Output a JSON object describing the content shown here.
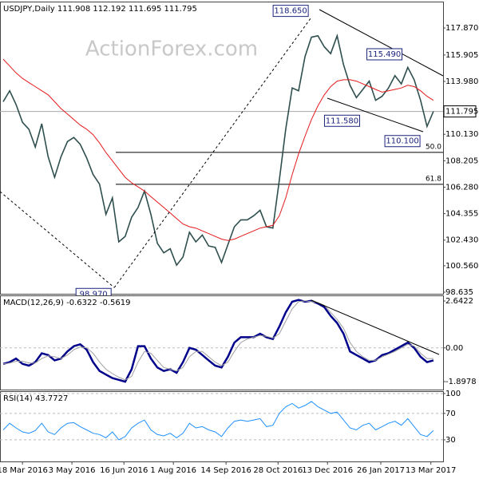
{
  "chart_data": [
    {
      "type": "line",
      "title": "USDJPY,Daily  111.908 112.192 111.695 111.795",
      "watermark": "ActionForex.com",
      "xlim": [
        -0.5,
        68.5
      ],
      "xticks": [
        {
          "value": 3,
          "label": "18 Mar 2016"
        },
        {
          "value": 10.7,
          "label": "3 May 2016"
        },
        {
          "value": 18.8,
          "label": "16 Jun 2016"
        },
        {
          "value": 26.5,
          "label": "1 Aug 2016"
        },
        {
          "value": 34.7,
          "label": "14 Sep 2016"
        },
        {
          "value": 42.8,
          "label": "28 Oct 2016"
        },
        {
          "value": 50.5,
          "label": "13 Dec 2016"
        },
        {
          "value": 58.8,
          "label": "26 Jan 2017"
        },
        {
          "value": 66.6,
          "label": "13 Mar 2017"
        }
      ],
      "ylim": [
        98.52,
        119.79
      ],
      "yticks": [
        98.635,
        {
          "value": 100.56,
          "label": "100.560"
        },
        {
          "value": 102.43,
          "label": "102.430"
        },
        104.355,
        {
          "value": 106.28,
          "label": "106.280"
        },
        108.205,
        {
          "value": 110.13,
          "label": "110.130"
        },
        {
          "value": 113.98,
          "label": "113.980"
        },
        115.905,
        {
          "value": 117.87,
          "label": "117.870"
        }
      ],
      "last_price": 111.795,
      "series": [
        {
          "color": "#2f4f4f",
          "values": [
            112.5,
            113.3,
            112.3,
            111.0,
            110.5,
            109.2,
            110.9,
            108.5,
            107.0,
            108.5,
            109.6,
            109.9,
            109.4,
            108.4,
            107.2,
            106.5,
            104.3,
            105.5,
            102.3,
            102.7,
            104.1,
            104.8,
            106.0,
            104.3,
            102.2,
            101.5,
            101.8,
            100.6,
            101.2,
            103.0,
            102.3,
            102.8,
            102.0,
            101.9,
            100.8,
            102.1,
            103.4,
            103.9,
            103.9,
            104.2,
            104.6,
            103.4,
            103.3,
            106.8,
            110.5,
            113.5,
            113.3,
            115.8,
            117.2,
            117.3,
            116.5,
            116.0,
            117.3,
            115.2,
            113.7,
            112.8,
            113.4,
            114.0,
            112.6,
            112.9,
            113.5,
            114.4,
            113.8,
            115.0,
            114.1,
            112.6,
            110.7,
            111.8
          ]
        },
        {
          "color": "#e41a1c",
          "values": [
            115.6,
            115.1,
            114.6,
            114.2,
            113.9,
            113.6,
            113.3,
            113.0,
            112.5,
            112.0,
            111.6,
            111.2,
            110.8,
            110.5,
            110.1,
            109.5,
            108.8,
            108.2,
            107.6,
            107.0,
            106.6,
            106.3,
            106.0,
            105.6,
            105.2,
            104.8,
            104.4,
            104.0,
            103.6,
            103.4,
            103.3,
            103.1,
            102.9,
            102.7,
            102.5,
            102.4,
            102.5,
            102.7,
            102.9,
            103.1,
            103.3,
            103.4,
            103.5,
            104.2,
            105.5,
            107.2,
            108.7,
            110.0,
            111.2,
            112.2,
            113.0,
            113.6,
            114.0,
            114.1,
            114.1,
            114.0,
            113.8,
            113.6,
            113.4,
            113.2,
            113.3,
            113.4,
            113.5,
            113.7,
            113.6,
            113.3,
            112.9,
            112.6
          ]
        }
      ],
      "levels": [
        {
          "value": 108.81,
          "label": "50.0"
        },
        {
          "value": 106.49,
          "label": "61.8"
        }
      ],
      "annotations": [
        {
          "x": 48,
          "value": 118.65,
          "label": "118.650"
        },
        {
          "x": 17.3,
          "value": 98.97,
          "label": "98.970"
        },
        {
          "x": 62.6,
          "value": 115.49,
          "label": "115.490"
        },
        {
          "x": 56,
          "value": 111.58,
          "label": "111.580"
        },
        {
          "x": 65.4,
          "value": 110.1,
          "label": "110.100"
        }
      ]
    },
    {
      "type": "line",
      "title": "MACD(12,26,9) -0.6322 -0.5619",
      "xlim": [
        -0.5,
        68.5
      ],
      "ylim": [
        -2.347,
        2.957
      ],
      "yticks": [
        2.6422,
        {
          "value": 0,
          "label": "0.00"
        },
        -1.8978
      ],
      "series": [
        {
          "color": "#00008b",
          "values": [
            -0.9,
            -0.8,
            -0.6,
            -0.9,
            -1.0,
            -0.8,
            -0.3,
            -0.4,
            -0.7,
            -0.6,
            -0.2,
            0.1,
            0.2,
            -0.1,
            -0.8,
            -1.3,
            -1.5,
            -1.7,
            -1.8,
            -1.9,
            -1.2,
            0.1,
            0.1,
            -0.6,
            -1.1,
            -1.3,
            -1.2,
            -1.4,
            -0.8,
            0.0,
            -0.1,
            -0.4,
            -0.7,
            -1.0,
            -1.1,
            -0.5,
            0.3,
            0.6,
            0.6,
            0.6,
            0.8,
            0.6,
            0.5,
            1.2,
            2.0,
            2.6,
            2.7,
            2.6,
            2.65,
            2.5,
            2.3,
            1.8,
            1.4,
            0.8,
            -0.2,
            -0.4,
            -0.6,
            -0.8,
            -0.7,
            -0.4,
            -0.3,
            -0.1,
            0.1,
            0.3,
            0.0,
            -0.5,
            -0.8,
            -0.7
          ]
        },
        {
          "color": "#a0a0a0",
          "values": [
            -0.9,
            -0.85,
            -0.75,
            -0.75,
            -0.85,
            -0.85,
            -0.6,
            -0.45,
            -0.5,
            -0.6,
            -0.4,
            -0.1,
            0.05,
            0.0,
            -0.3,
            -0.8,
            -1.2,
            -1.45,
            -1.65,
            -1.8,
            -1.6,
            -0.8,
            -0.2,
            -0.3,
            -0.7,
            -1.1,
            -1.2,
            -1.3,
            -1.1,
            -0.5,
            -0.2,
            -0.2,
            -0.5,
            -0.8,
            -1.0,
            -0.8,
            -0.2,
            0.3,
            0.5,
            0.6,
            0.7,
            0.65,
            0.55,
            0.8,
            1.5,
            2.2,
            2.6,
            2.65,
            2.6,
            2.55,
            2.4,
            2.0,
            1.6,
            1.1,
            0.3,
            -0.2,
            -0.5,
            -0.7,
            -0.7,
            -0.5,
            -0.35,
            -0.2,
            0.0,
            0.2,
            0.1,
            -0.3,
            -0.6,
            -0.6
          ]
        }
      ]
    },
    {
      "type": "line",
      "title": "RSI(14) 43.7727",
      "xlim": [
        -0.5,
        68.5
      ],
      "ylim": [
        -2.7,
        103.6
      ],
      "yticks": [
        100,
        70,
        30
      ],
      "series": [
        {
          "color": "#1e90ff",
          "values": [
            45,
            55,
            48,
            42,
            40,
            44,
            55,
            42,
            38,
            48,
            55,
            56,
            50,
            45,
            40,
            38,
            33,
            42,
            30,
            35,
            48,
            55,
            60,
            45,
            38,
            36,
            40,
            33,
            40,
            55,
            48,
            50,
            45,
            42,
            35,
            48,
            58,
            60,
            58,
            60,
            62,
            50,
            52,
            70,
            80,
            85,
            78,
            82,
            88,
            80,
            75,
            70,
            72,
            60,
            48,
            45,
            52,
            55,
            45,
            50,
            55,
            58,
            52,
            62,
            50,
            38,
            35,
            44
          ]
        }
      ]
    }
  ]
}
